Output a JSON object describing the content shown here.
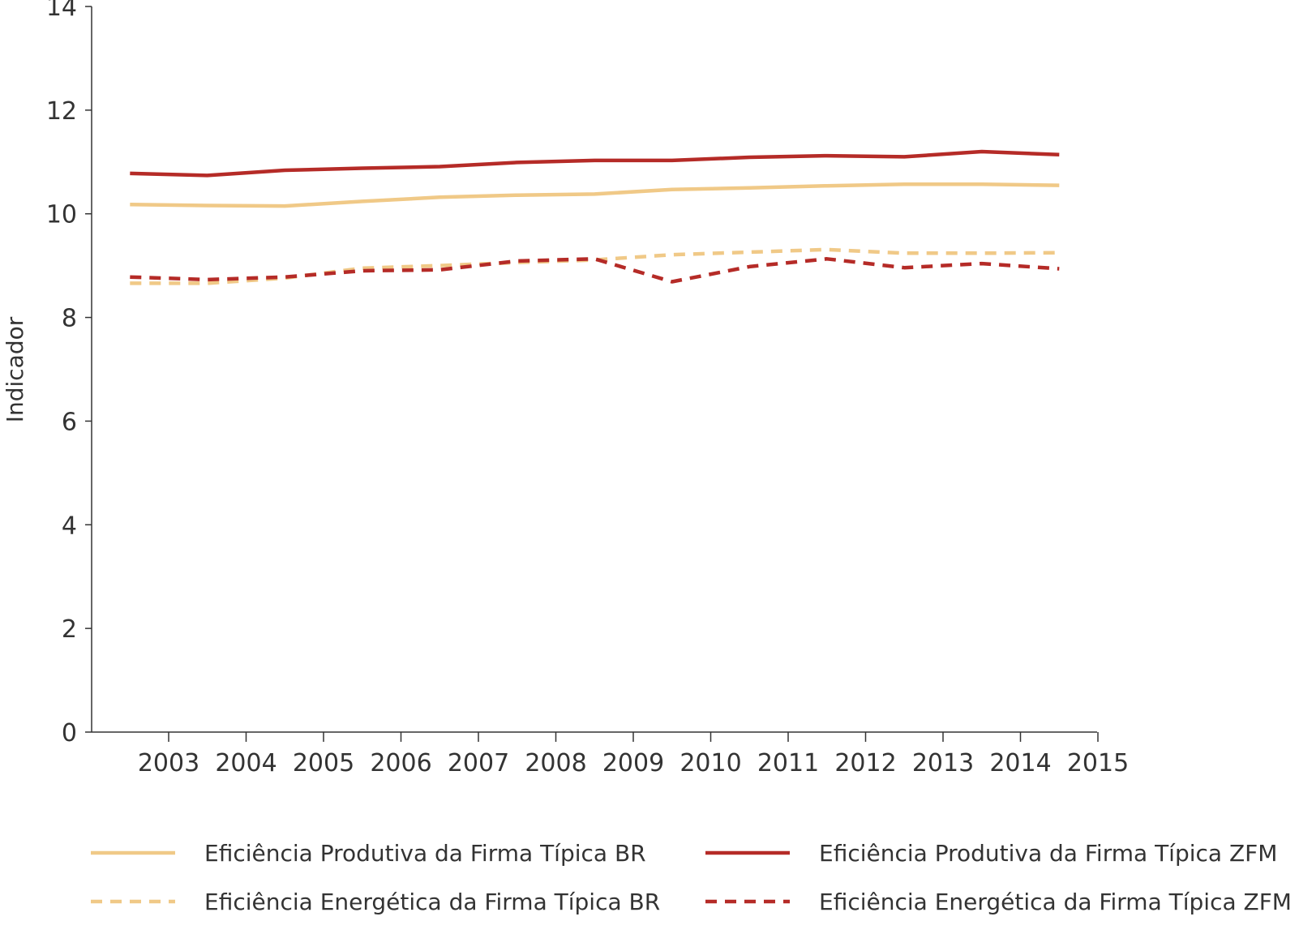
{
  "chart_data": {
    "type": "line",
    "title": "",
    "xlabel": "",
    "ylabel": "Indicador",
    "x_ticks": [
      "2003",
      "2004",
      "2005",
      "2006",
      "2007",
      "2008",
      "2009",
      "2010",
      "2011",
      "2012",
      "2013",
      "2014",
      "2015"
    ],
    "ylim": [
      0,
      14
    ],
    "y_ticks": [
      0,
      2,
      4,
      6,
      8,
      10,
      12,
      14
    ],
    "grid": false,
    "legend_position": "bottom",
    "series": [
      {
        "name": "Eficiência Produtiva da Firma Típica BR",
        "color": "#f0c987",
        "style": "solid",
        "values": [
          10.18,
          10.16,
          10.15,
          10.24,
          10.32,
          10.36,
          10.38,
          10.47,
          10.5,
          10.54,
          10.57,
          10.57,
          10.55
        ]
      },
      {
        "name": "Eficiência Produtiva da Firma Típica ZFM",
        "color": "#b52b27",
        "style": "solid",
        "values": [
          10.78,
          10.74,
          10.84,
          10.88,
          10.91,
          10.99,
          11.03,
          11.03,
          11.09,
          11.12,
          11.1,
          11.2,
          11.14
        ]
      },
      {
        "name": "Eficiência Energética da Firma Típica BR",
        "color": "#f0c987",
        "style": "dashed",
        "values": [
          8.66,
          8.66,
          8.76,
          8.95,
          9.0,
          9.06,
          9.11,
          9.21,
          9.26,
          9.31,
          9.24,
          9.24,
          9.25
        ]
      },
      {
        "name": "Eficiência Energética da Firma Típica ZFM",
        "color": "#b52b27",
        "style": "dashed",
        "values": [
          8.78,
          8.73,
          8.78,
          8.9,
          8.92,
          9.09,
          9.13,
          8.69,
          8.98,
          9.13,
          8.96,
          9.04,
          8.94
        ]
      }
    ]
  }
}
